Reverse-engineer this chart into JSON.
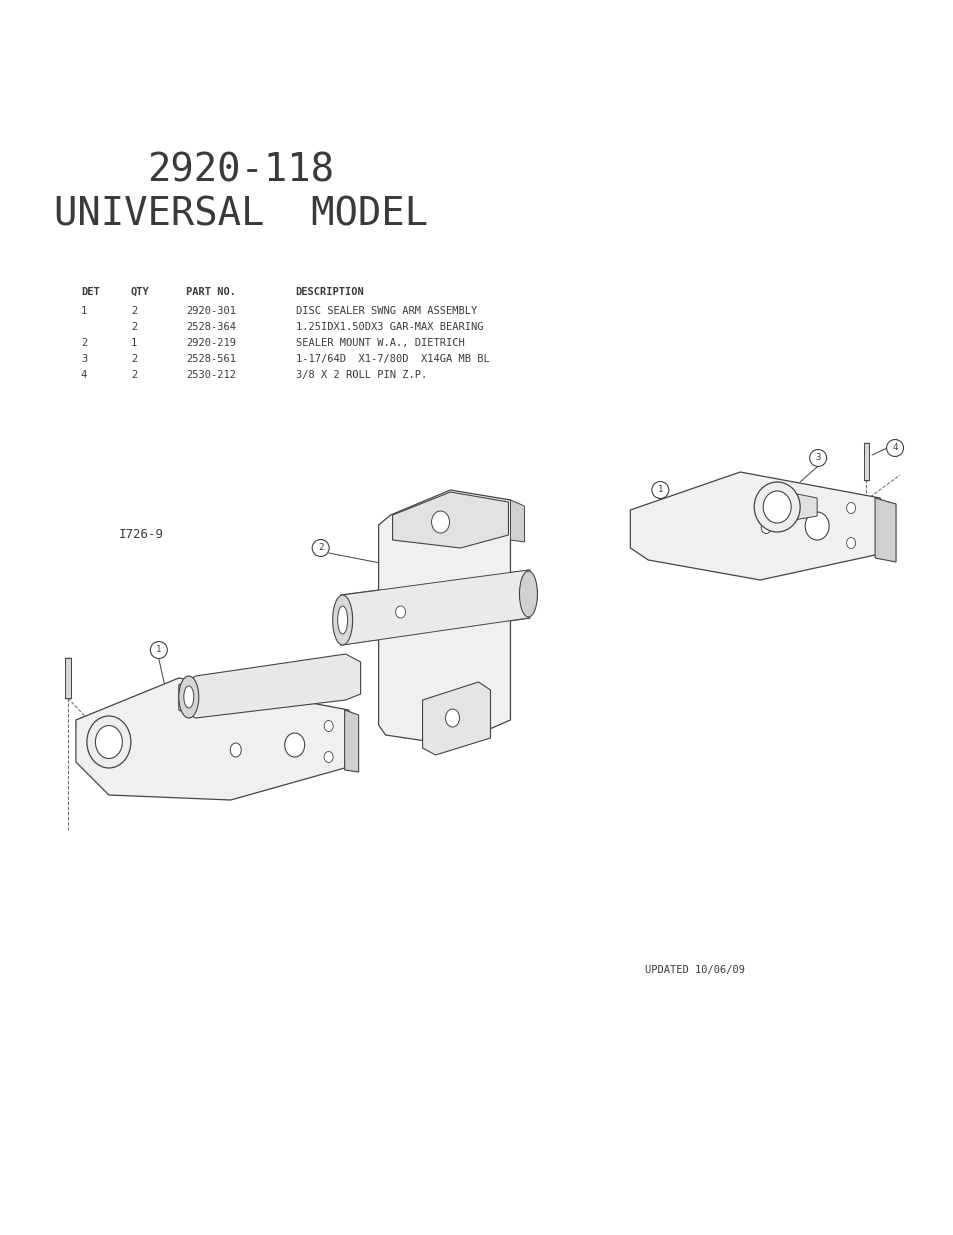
{
  "title_line1": "2920-118",
  "title_line2": "UNIVERSAL  MODEL",
  "bg_color": "#ffffff",
  "text_color": "#000000",
  "table_headers": [
    "DET",
    "QTY",
    "PART NO.",
    "DESCRIPTION"
  ],
  "table_rows": [
    [
      "1",
      "2",
      "2920-301",
      "DISC SEALER SWNG ARM ASSEMBLY"
    ],
    [
      "",
      "2",
      "2528-364",
      "1.25IDX1.50DX3 GAR-MAX BEARING"
    ],
    [
      "2",
      "1",
      "2920-219",
      "SEALER MOUNT W.A., DIETRICH"
    ],
    [
      "3",
      "2",
      "2528-561",
      "1-17/64D  X1-7/80D  X14GA MB BL"
    ],
    [
      "4",
      "2",
      "2530-212",
      "3/8 X 2 ROLL PIN Z.P."
    ]
  ],
  "label_1726": "I726-9",
  "updated_text": "UPDATED 10/06/09",
  "font_color": "#3a3a3a"
}
